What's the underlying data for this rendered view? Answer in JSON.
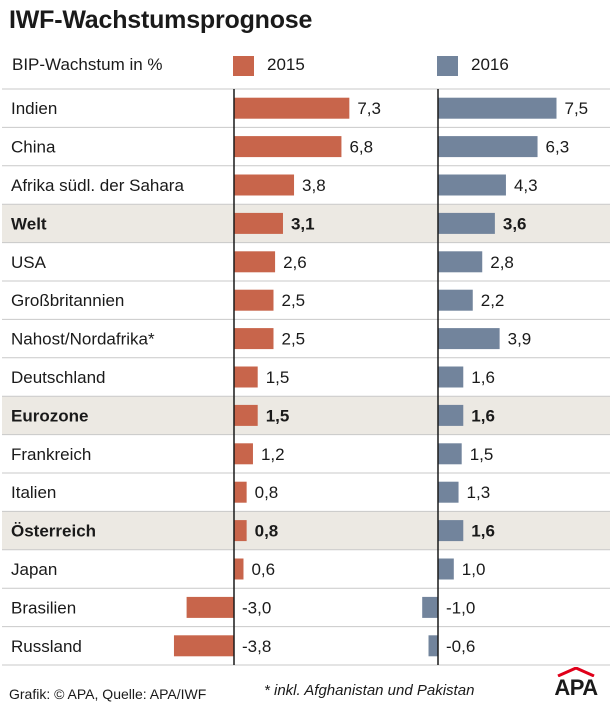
{
  "chart_data": {
    "type": "bar",
    "orientation": "horizontal",
    "title": "IWF-Wachstumsprognose",
    "ylabel": "BIP-Wachstum in %",
    "categories": [
      "Indien",
      "China",
      "Afrika südl. der Sahara",
      "Welt",
      "USA",
      "Großbritannien",
      "Nahost/Nordafrika*",
      "Deutschland",
      "Eurozone",
      "Frankreich",
      "Italien",
      "Österreich",
      "Japan",
      "Brasilien",
      "Russland"
    ],
    "highlighted": [
      "Welt",
      "Eurozone",
      "Österreich"
    ],
    "series": [
      {
        "name": "2015",
        "color": "#c8654b",
        "values": [
          7.3,
          6.8,
          3.8,
          3.1,
          2.6,
          2.5,
          2.5,
          1.5,
          1.5,
          1.2,
          0.8,
          0.8,
          0.6,
          -3.0,
          -3.8
        ],
        "labels": [
          "7,3",
          "6,8",
          "3,8",
          "3,1",
          "2,6",
          "2,5",
          "2,5",
          "1,5",
          "1,5",
          "1,2",
          "0,8",
          "0,8",
          "0,6",
          "-3,0",
          "-3,8"
        ]
      },
      {
        "name": "2016",
        "color": "#72849c",
        "values": [
          7.5,
          6.3,
          4.3,
          3.6,
          2.8,
          2.2,
          3.9,
          1.6,
          1.6,
          1.5,
          1.3,
          1.6,
          1.0,
          -1.0,
          -0.6
        ],
        "labels": [
          "7,5",
          "6,3",
          "4,3",
          "3,6",
          "2,8",
          "2,2",
          "3,9",
          "1,6",
          "1,6",
          "1,5",
          "1,3",
          "1,6",
          "1,0",
          "-1,0",
          "-0,6"
        ]
      }
    ]
  },
  "footer": {
    "source": "Grafik: © APA, Quelle: APA/IWF",
    "note": "* inkl. Afghanistan und Pakistan",
    "logo_text": "APA"
  },
  "colors": {
    "highlight_row": "#ece9e3",
    "divider": "#c9c9c9",
    "axis": "#1a1a1a"
  }
}
